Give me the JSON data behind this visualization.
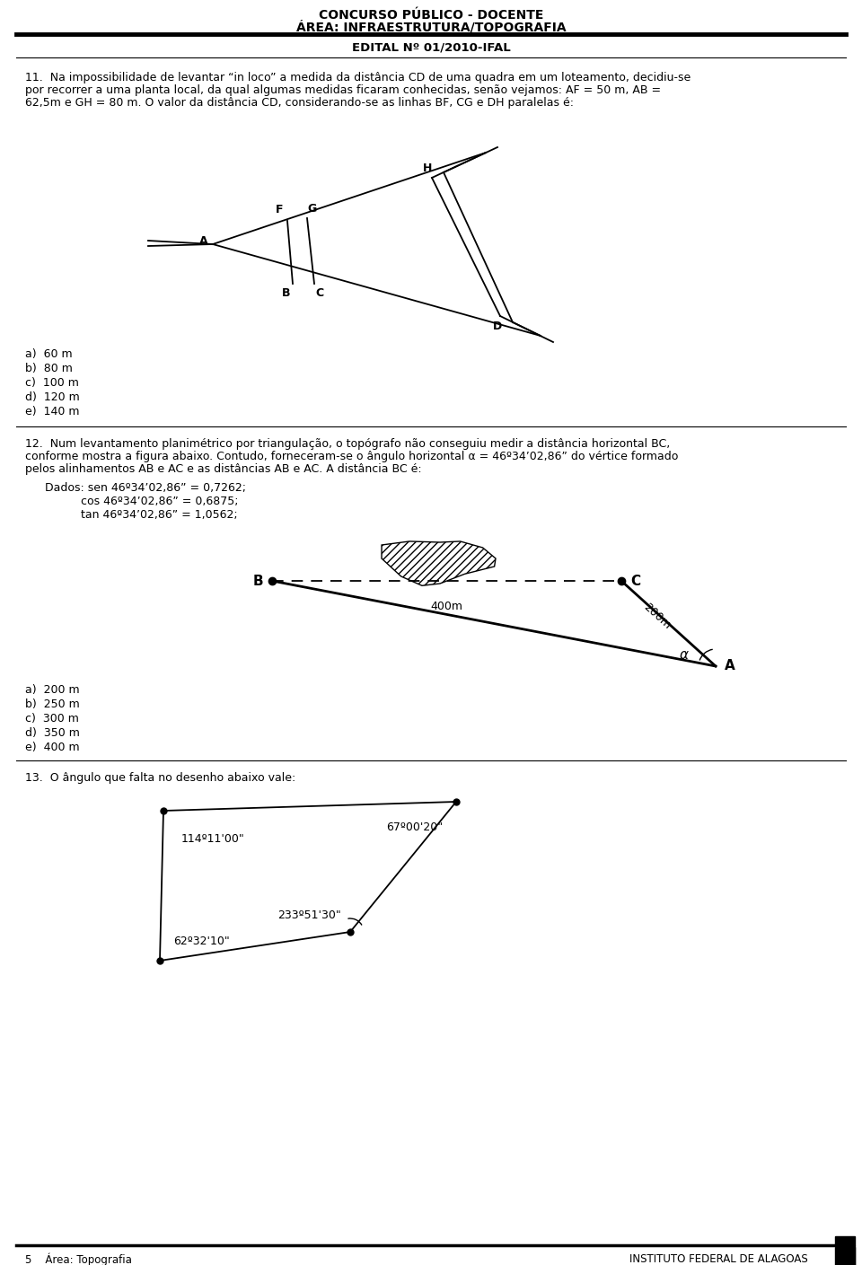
{
  "title1": "CONCURSO PÚBLICO - DOCENTE",
  "title2": "ÁREA: INFRAESTRUTURA/TOPOGRAFIA",
  "title3": "EDITAL Nº 01/2010-IFAL",
  "q11_lines": [
    "11.  Na impossibilidade de levantar “in loco” a medida da distância CD de uma quadra em um loteamento, decidiu-se",
    "por recorrer a uma planta local, da qual algumas medidas ficaram conhecidas, senão vejamos: AF = 50 m, AB =",
    "62,5m e GH = 80 m. O valor da distância CD, considerando-se as linhas BF, CG e DH paralelas é:"
  ],
  "q11_options": [
    "a)  60 m",
    "b)  80 m",
    "c)  100 m",
    "d)  120 m",
    "e)  140 m"
  ],
  "q12_lines": [
    "12.  Num levantamento planimétrico por triangulação, o topógrafo não conseguiu medir a distância horizontal BC,",
    "conforme mostra a figura abaixo. Contudo, forneceram-se o ângulo horizontal α = 46º34’02,86” do vértice formado",
    "pelos alinhamentos AB e AC e as distâncias AB e AC. A distância BC é:"
  ],
  "q12_data_lines": [
    "Dados: sen 46º34’02,86” = 0,7262;",
    "          cos 46º34’02,86” = 0,6875;",
    "          tan 46º34’02,86” = 1,0562;"
  ],
  "q12_options": [
    "a)  200 m",
    "b)  250 m",
    "c)  300 m",
    "d)  350 m",
    "e)  400 m"
  ],
  "q13_text": "13.  O ângulo que falta no desenho abaixo vale:",
  "footer_left": "5    Área: Topografia",
  "footer_right": "INSTITUTO FEDERAL DE ALAGOAS",
  "bg_color": "#ffffff"
}
